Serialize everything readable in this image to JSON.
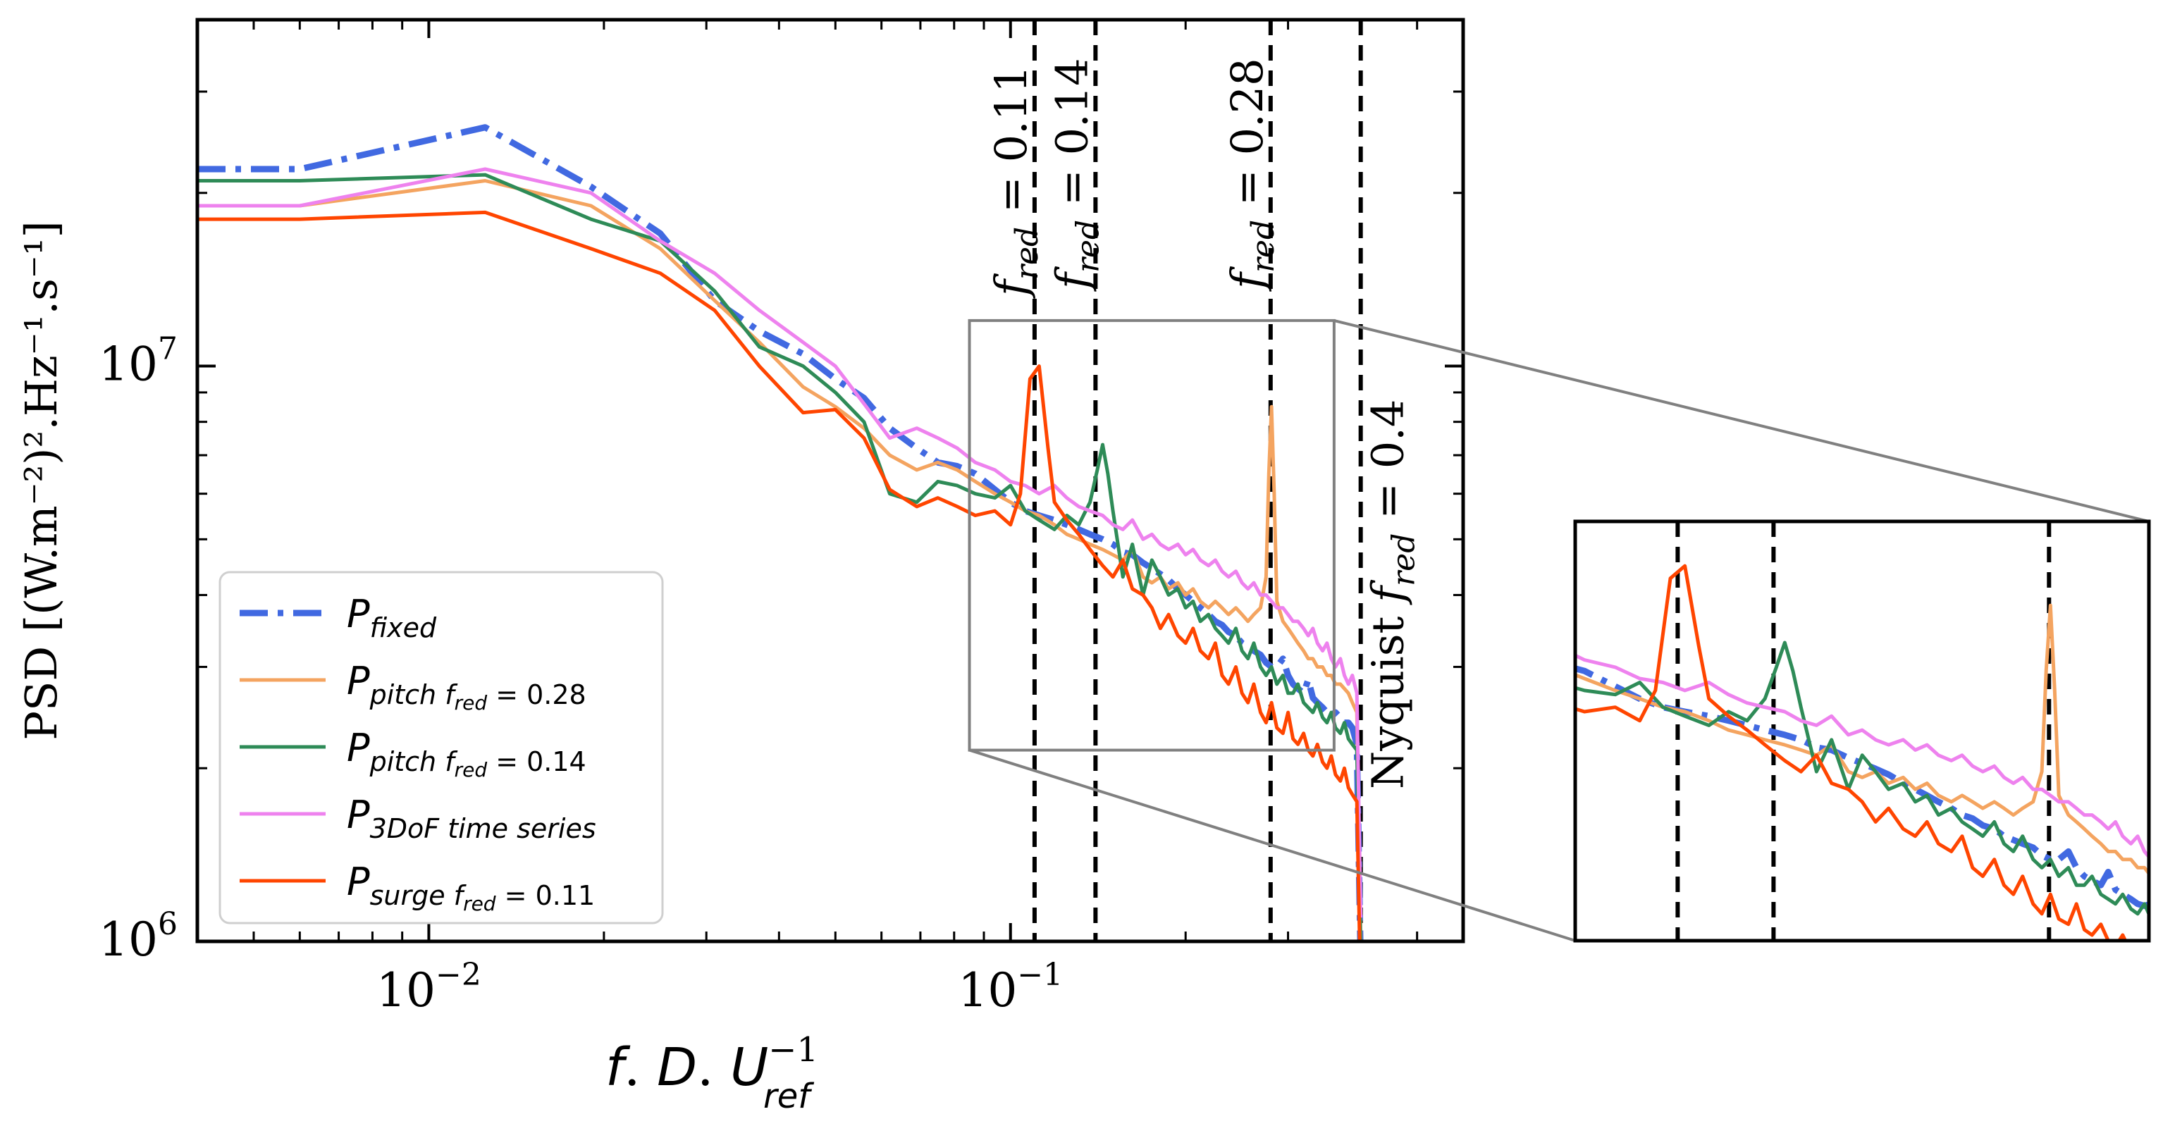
{
  "chart_data": {
    "type": "line",
    "xscale": "log",
    "yscale": "log",
    "xlim": [
      0.004,
      0.6
    ],
    "ylim": [
      1000000,
      40000000
    ],
    "ylabel": "PSD [(W.m⁻²)².Hz⁻¹.s⁻¹]",
    "xlabel": {
      "f": "f",
      "dot1": ". ",
      "D": "D",
      "dot2": ". ",
      "U": "U",
      "sup": "−1",
      "sub": "ref"
    },
    "x_ticks": [
      {
        "value": 0.01,
        "base": "10",
        "exp": "−2"
      },
      {
        "value": 0.1,
        "base": "10",
        "exp": "−1"
      }
    ],
    "y_ticks": [
      {
        "value": 1000000,
        "base": "10",
        "exp": "6"
      },
      {
        "value": 10000000,
        "base": "10",
        "exp": "7"
      }
    ],
    "vlines": [
      {
        "x": 0.11,
        "main": "f",
        "sub": "red",
        "rest": " = 0.11"
      },
      {
        "x": 0.14,
        "main": "f",
        "sub": "red",
        "rest": " = 0.14"
      },
      {
        "x": 0.28,
        "main": "f",
        "sub": "red",
        "rest": " = 0.28"
      },
      {
        "x": 0.4,
        "main": "Nyquist f",
        "sub": "red",
        "rest": " = 0.4"
      }
    ],
    "series": [
      {
        "name": "P_fixed",
        "label_main": "P",
        "label_sub": "fixed",
        "label_rest": "",
        "color": "#4169e1",
        "dash": "dashdot",
        "x": [
          0.004,
          0.006,
          0.0125,
          0.019,
          0.025,
          0.031,
          0.037,
          0.044,
          0.05,
          0.056,
          0.062,
          0.069,
          0.075,
          0.081,
          0.087,
          0.094,
          0.1,
          0.106,
          0.112,
          0.119,
          0.125,
          0.131,
          0.137,
          0.144,
          0.15,
          0.156,
          0.162,
          0.169,
          0.175,
          0.181,
          0.187,
          0.194,
          0.2,
          0.206,
          0.212,
          0.219,
          0.225,
          0.231,
          0.237,
          0.244,
          0.25,
          0.256,
          0.262,
          0.269,
          0.275,
          0.281,
          0.287,
          0.294,
          0.3,
          0.306,
          0.312,
          0.319,
          0.325,
          0.331,
          0.337,
          0.344,
          0.35,
          0.356,
          0.362,
          0.369,
          0.375,
          0.381,
          0.387,
          0.394,
          0.4
        ],
        "y": [
          22000000,
          22000000,
          26000000,
          20500000,
          17000000,
          13000000,
          11500000,
          10500000,
          9500000,
          8800000,
          7800000,
          7200000,
          6800000,
          6700000,
          6500000,
          6100000,
          5800000,
          5600000,
          5500000,
          5400000,
          5300000,
          5200000,
          5100000,
          5000000,
          4900000,
          4750000,
          4700000,
          4550000,
          4450000,
          4350000,
          4250000,
          4100000,
          4000000,
          3900000,
          3800000,
          3700000,
          3600000,
          3550000,
          3450000,
          3400000,
          3300000,
          3250000,
          3200000,
          3150000,
          3050000,
          3000000,
          3000000,
          3100000,
          2900000,
          2800000,
          2750000,
          2700000,
          2850000,
          2650000,
          2600000,
          2550000,
          2500000,
          2480000,
          2500000,
          2450000,
          2400000,
          2400000,
          2350000,
          2200000,
          900000
        ]
      },
      {
        "name": "P_pitch_0.28",
        "label_main": "P",
        "label_sub": "pitch",
        "label_rest": " f",
        "label_sub2": "red",
        "label_rest2": " = 0.28",
        "color": "#f4a460",
        "dash": "solid",
        "x": [
          0.004,
          0.006,
          0.0125,
          0.019,
          0.025,
          0.031,
          0.037,
          0.044,
          0.05,
          0.056,
          0.062,
          0.069,
          0.075,
          0.081,
          0.087,
          0.094,
          0.1,
          0.106,
          0.112,
          0.119,
          0.125,
          0.131,
          0.137,
          0.144,
          0.15,
          0.156,
          0.162,
          0.169,
          0.175,
          0.181,
          0.187,
          0.194,
          0.2,
          0.206,
          0.212,
          0.219,
          0.225,
          0.231,
          0.237,
          0.244,
          0.25,
          0.256,
          0.262,
          0.269,
          0.275,
          0.278,
          0.281,
          0.284,
          0.287,
          0.294,
          0.3,
          0.306,
          0.312,
          0.319,
          0.325,
          0.331,
          0.337,
          0.344,
          0.35,
          0.356,
          0.362,
          0.369,
          0.375,
          0.381,
          0.387,
          0.394,
          0.4
        ],
        "y": [
          19000000,
          19000000,
          21000000,
          19000000,
          16000000,
          13000000,
          11000000,
          9200000,
          8500000,
          7800000,
          7000000,
          6600000,
          6800000,
          6600000,
          6300000,
          6000000,
          5800000,
          5600000,
          5500000,
          5300000,
          5100000,
          5000000,
          4900000,
          4800000,
          4700000,
          4600000,
          4800000,
          4300000,
          4200000,
          4300000,
          4100000,
          4200000,
          4000000,
          4100000,
          3900000,
          3800000,
          3900000,
          3800000,
          3700000,
          3800000,
          3700000,
          3600000,
          3700000,
          3800000,
          4300000,
          6500000,
          8500000,
          6000000,
          3900000,
          3600000,
          3500000,
          3400000,
          3300000,
          3200000,
          3100000,
          3100000,
          3000000,
          3000000,
          2900000,
          2900000,
          2800000,
          2800000,
          2750000,
          2700000,
          2600000,
          2500000,
          1000000
        ]
      },
      {
        "name": "P_pitch_0.14",
        "label_main": "P",
        "label_sub": "pitch",
        "label_rest": " f",
        "label_sub2": "red",
        "label_rest2": " = 0.14",
        "color": "#2e8b57",
        "dash": "solid",
        "x": [
          0.004,
          0.006,
          0.0125,
          0.019,
          0.025,
          0.031,
          0.037,
          0.044,
          0.05,
          0.056,
          0.062,
          0.069,
          0.075,
          0.081,
          0.087,
          0.094,
          0.1,
          0.106,
          0.112,
          0.119,
          0.125,
          0.131,
          0.137,
          0.141,
          0.144,
          0.147,
          0.15,
          0.156,
          0.162,
          0.169,
          0.175,
          0.181,
          0.187,
          0.194,
          0.2,
          0.206,
          0.212,
          0.219,
          0.225,
          0.231,
          0.237,
          0.244,
          0.25,
          0.256,
          0.262,
          0.269,
          0.275,
          0.281,
          0.287,
          0.294,
          0.3,
          0.306,
          0.312,
          0.319,
          0.325,
          0.331,
          0.337,
          0.344,
          0.35,
          0.356,
          0.362,
          0.369,
          0.375,
          0.381,
          0.387,
          0.394,
          0.4
        ],
        "y": [
          21000000,
          21000000,
          21500000,
          18000000,
          16500000,
          13500000,
          10800000,
          10000000,
          9000000,
          8000000,
          6000000,
          5800000,
          6300000,
          6200000,
          6000000,
          5900000,
          6200000,
          5600000,
          5400000,
          5200000,
          5500000,
          5300000,
          5800000,
          6600000,
          7300000,
          6500000,
          5600000,
          4300000,
          4900000,
          4000000,
          4600000,
          4300000,
          4000000,
          4100000,
          3800000,
          3900000,
          3600000,
          3700000,
          3500000,
          3400000,
          3300000,
          3500000,
          3200000,
          3100000,
          3300000,
          3000000,
          2900000,
          3000000,
          2800000,
          2900000,
          2700000,
          2700000,
          2800000,
          2600000,
          2550000,
          2500000,
          2600000,
          2450000,
          2400000,
          2500000,
          2350000,
          2300000,
          2400000,
          2250000,
          2200000,
          2150000,
          950000
        ]
      },
      {
        "name": "P_3DoF",
        "label_main": "P",
        "label_sub": "3DoF time series",
        "label_rest": "",
        "color": "#ee82ee",
        "dash": "solid",
        "x": [
          0.004,
          0.006,
          0.0125,
          0.019,
          0.025,
          0.031,
          0.037,
          0.044,
          0.05,
          0.056,
          0.062,
          0.069,
          0.075,
          0.081,
          0.087,
          0.094,
          0.1,
          0.106,
          0.112,
          0.119,
          0.125,
          0.131,
          0.137,
          0.144,
          0.15,
          0.156,
          0.162,
          0.169,
          0.175,
          0.181,
          0.187,
          0.194,
          0.2,
          0.206,
          0.212,
          0.219,
          0.225,
          0.231,
          0.237,
          0.244,
          0.25,
          0.256,
          0.262,
          0.269,
          0.275,
          0.281,
          0.287,
          0.294,
          0.3,
          0.306,
          0.312,
          0.319,
          0.325,
          0.331,
          0.337,
          0.344,
          0.35,
          0.356,
          0.362,
          0.369,
          0.375,
          0.381,
          0.387,
          0.394,
          0.4
        ],
        "y": [
          19000000,
          19000000,
          22000000,
          20000000,
          16500000,
          14500000,
          12500000,
          11000000,
          10000000,
          8600000,
          7500000,
          7800000,
          7500000,
          7200000,
          6800000,
          6600000,
          6300000,
          6200000,
          6000000,
          6200000,
          5900000,
          5700000,
          5600000,
          5500000,
          5300000,
          5200000,
          5400000,
          5000000,
          5100000,
          4900000,
          4800000,
          4900000,
          4700000,
          4800000,
          4600000,
          4500000,
          4600000,
          4400000,
          4300000,
          4400000,
          4200000,
          4100000,
          4200000,
          4000000,
          4000000,
          3900000,
          3800000,
          3800000,
          3700000,
          3600000,
          3600000,
          3500000,
          3400000,
          3500000,
          3300000,
          3200000,
          3300000,
          3100000,
          3000000,
          3100000,
          2900000,
          2800000,
          2900000,
          2700000,
          1100000
        ]
      },
      {
        "name": "P_surge_0.11",
        "label_main": "P",
        "label_sub": "surge",
        "label_rest": " f",
        "label_sub2": "red",
        "label_rest2": " = 0.11",
        "color": "#ff4500",
        "dash": "solid",
        "x": [
          0.004,
          0.006,
          0.0125,
          0.019,
          0.025,
          0.031,
          0.037,
          0.044,
          0.05,
          0.056,
          0.062,
          0.069,
          0.075,
          0.081,
          0.087,
          0.094,
          0.1,
          0.104,
          0.108,
          0.112,
          0.116,
          0.119,
          0.125,
          0.131,
          0.137,
          0.144,
          0.15,
          0.156,
          0.162,
          0.169,
          0.175,
          0.181,
          0.187,
          0.194,
          0.2,
          0.206,
          0.212,
          0.219,
          0.225,
          0.231,
          0.237,
          0.244,
          0.25,
          0.256,
          0.262,
          0.269,
          0.275,
          0.281,
          0.287,
          0.294,
          0.3,
          0.306,
          0.312,
          0.319,
          0.325,
          0.331,
          0.337,
          0.344,
          0.35,
          0.356,
          0.362,
          0.369,
          0.375,
          0.381,
          0.387,
          0.394,
          0.4
        ],
        "y": [
          18000000,
          18000000,
          18500000,
          16000000,
          14500000,
          12500000,
          10000000,
          8300000,
          8400000,
          7500000,
          6100000,
          5700000,
          5900000,
          5700000,
          5500000,
          5600000,
          5300000,
          6000000,
          9500000,
          10000000,
          7200000,
          5800000,
          5400000,
          5100000,
          4800000,
          4500000,
          4300000,
          4600000,
          4100000,
          4000000,
          3800000,
          3500000,
          3700000,
          3400000,
          3300000,
          3500000,
          3200000,
          3100000,
          3300000,
          2900000,
          2800000,
          3000000,
          2700000,
          2600000,
          2800000,
          2500000,
          2400000,
          2600000,
          2350000,
          2300000,
          2500000,
          2250000,
          2200000,
          2300000,
          2150000,
          2100000,
          2200000,
          2050000,
          2000000,
          2100000,
          1950000,
          1900000,
          2000000,
          1850000,
          1800000,
          1750000,
          800000
        ]
      }
    ],
    "inset": {
      "xlim": [
        0.085,
        0.36
      ],
      "ylim": [
        2150000,
        12000000
      ]
    }
  }
}
